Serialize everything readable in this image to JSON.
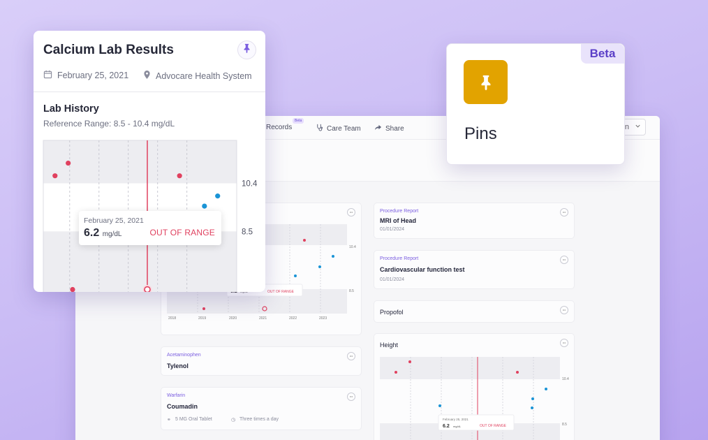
{
  "app": {
    "nav": [
      {
        "label": "Records",
        "icon": "records-icon"
      },
      {
        "label": "Care Team",
        "icon": "stethoscope-icon"
      },
      {
        "label": "Share",
        "icon": "share-icon"
      }
    ],
    "nav_badge": "Beta",
    "dropdown_value": "n",
    "cards": {
      "procedure1": {
        "kicker": "Procedure Report",
        "title": "MRI of Head",
        "date": "01/01/2024"
      },
      "procedure2": {
        "kicker": "Procedure Report",
        "title": "Cardiovascular function test",
        "date": "01/01/2024"
      },
      "propofol": {
        "title": "Propofol"
      },
      "height": {
        "title": "Height"
      },
      "acetaminophen": {
        "kicker": "Acetaminophen",
        "title": "Tylenol"
      },
      "warfarin": {
        "kicker": "Warfarin",
        "title": "Coumadin",
        "dose": "5 MG Oral Tablet",
        "frequency": "Three times a day"
      }
    },
    "mini_charts": {
      "tooltip_date": "February 25, 2021",
      "tooltip_value": "6.2",
      "tooltip_unit": "mg/dL",
      "tooltip_status": "OUT OF RANGE",
      "y_upper": "10.4",
      "y_lower": "8.5",
      "years": [
        "2018",
        "2019",
        "2020",
        "2021",
        "2022",
        "2023"
      ]
    },
    "more_glyph": "•••"
  },
  "popup": {
    "title": "Calcium Lab Results",
    "date": "February 25, 2021",
    "location": "Advocare Health System",
    "section_title": "Lab History",
    "reference_range": "Reference Range: 8.5 - 10.4 mg/dL",
    "tooltip": {
      "date": "February 25, 2021",
      "value": "6.2",
      "unit": "mg/dL",
      "status": "OUT OF RANGE"
    }
  },
  "pins_card": {
    "label": "Pins",
    "badge": "Beta"
  },
  "colors": {
    "accent": "#7b5ee0",
    "out_of_range": "#e0415f",
    "in_range": "#1a94d6",
    "pin_gold": "#e2a300"
  },
  "chart_data": {
    "type": "scatter",
    "title": "Lab History",
    "subtitle": "Reference Range: 8.5 - 10.4 mg/dL",
    "xlabel": "",
    "ylabel": "",
    "x_ticks": [
      "2018",
      "2019",
      "2020",
      "2021",
      "2022",
      "2023"
    ],
    "y_ticks": [
      "10.4",
      "8.5"
    ],
    "reference_range": [
      8.5,
      10.4
    ],
    "ylim": [
      5.8,
      12.1
    ],
    "xlim": [
      2017.6,
      2024.2
    ],
    "highlight": {
      "x": 2021.15,
      "y": 6.2,
      "label": "February 25, 2021",
      "status": "OUT OF RANGE"
    },
    "series": [
      {
        "name": "out of range",
        "color": "#e0415f",
        "points": [
          [
            2018.0,
            10.7
          ],
          [
            2018.45,
            11.2
          ],
          [
            2018.6,
            6.2
          ],
          [
            2021.15,
            6.2
          ],
          [
            2022.25,
            10.7
          ]
        ]
      },
      {
        "name": "in range",
        "color": "#1a94d6",
        "points": [
          [
            2023.1,
            9.5
          ],
          [
            2023.55,
            9.9
          ]
        ]
      }
    ]
  }
}
